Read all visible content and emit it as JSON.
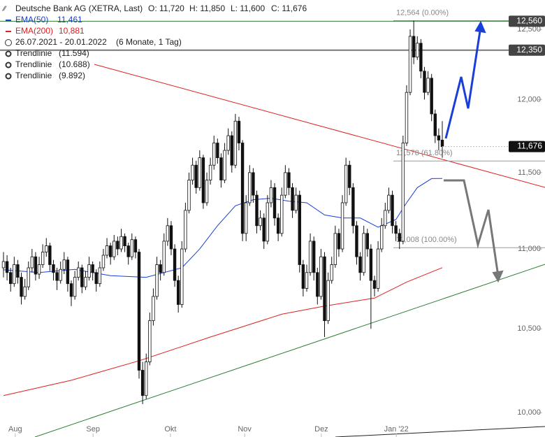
{
  "chart_data": {
    "type": "candlestick",
    "title": "Deutsche Bank AG (XETRA, Last)",
    "quote": [
      "O: 11,720",
      "H: 11,850",
      "L: 11,600",
      "C: 11,676"
    ],
    "period": "26.07.2021 - 20.01.2022",
    "period_note": "(6 Monate, 1 Tag)",
    "log_scale": true,
    "ylim": [
      9960,
      12716
    ],
    "yticks": [
      {
        "value": 10000,
        "label": "10,000"
      },
      {
        "value": 10500,
        "label": "10,500"
      },
      {
        "value": 11000,
        "label": "11,000"
      },
      {
        "value": 11500,
        "label": "11,500"
      },
      {
        "value": 12000,
        "label": "12,000"
      },
      {
        "value": 12500,
        "label": "12,500"
      }
    ],
    "xlim": [
      0,
      123
    ],
    "xticks": [
      {
        "value": 3.3,
        "label": "Aug"
      },
      {
        "value": 25.1,
        "label": "Sep"
      },
      {
        "value": 46.8,
        "label": "Okt"
      },
      {
        "value": 67.6,
        "label": "Nov"
      },
      {
        "value": 89.1,
        "label": "Dez"
      },
      {
        "value": 110.1,
        "label": "Jan '22"
      }
    ],
    "candles": [
      [
        10880,
        10980,
        10820,
        10920
      ],
      [
        10920,
        10960,
        10800,
        10850
      ],
      [
        10850,
        10880,
        10730,
        10780
      ],
      [
        10780,
        10950,
        10760,
        10900
      ],
      [
        10900,
        10930,
        10780,
        10820
      ],
      [
        10820,
        10850,
        10650,
        10700
      ],
      [
        10700,
        10810,
        10680,
        10760
      ],
      [
        10760,
        10920,
        10740,
        10880
      ],
      [
        10880,
        11000,
        10850,
        10950
      ],
      [
        10950,
        10980,
        10800,
        10840
      ],
      [
        10840,
        10950,
        10810,
        10900
      ],
      [
        10900,
        11030,
        10880,
        10980
      ],
      [
        10980,
        11070,
        10950,
        11020
      ],
      [
        11020,
        11040,
        10860,
        10900
      ],
      [
        10900,
        10930,
        10800,
        10850
      ],
      [
        10850,
        10880,
        10740,
        10800
      ],
      [
        10800,
        10920,
        10780,
        10870
      ],
      [
        10870,
        10980,
        10840,
        10930
      ],
      [
        10930,
        10950,
        10730,
        10780
      ],
      [
        10780,
        10800,
        10640,
        10700
      ],
      [
        10700,
        10860,
        10680,
        10820
      ],
      [
        10820,
        10920,
        10800,
        10880
      ],
      [
        10880,
        10900,
        10720,
        10760
      ],
      [
        10760,
        10860,
        10740,
        10820
      ],
      [
        10820,
        10950,
        10800,
        10900
      ],
      [
        10900,
        10920,
        10800,
        10850
      ],
      [
        10850,
        10870,
        10730,
        10780
      ],
      [
        10780,
        10920,
        10760,
        10880
      ],
      [
        10880,
        11000,
        10860,
        10960
      ],
      [
        10960,
        11070,
        10940,
        11020
      ],
      [
        11020,
        11040,
        10900,
        10950
      ],
      [
        10950,
        11090,
        10930,
        11050
      ],
      [
        11050,
        11080,
        10960,
        11000
      ],
      [
        11000,
        11130,
        10980,
        11080
      ],
      [
        11080,
        11100,
        10980,
        11020
      ],
      [
        11020,
        11040,
        10900,
        10950
      ],
      [
        10950,
        11100,
        10930,
        11060
      ],
      [
        11060,
        11080,
        10940,
        10980
      ],
      [
        10980,
        11000,
        10200,
        10250
      ],
      [
        10250,
        10300,
        10050,
        10100
      ],
      [
        10100,
        10350,
        10080,
        10300
      ],
      [
        10300,
        10600,
        10280,
        10550
      ],
      [
        10550,
        10750,
        10520,
        10700
      ],
      [
        10700,
        10950,
        10680,
        10900
      ],
      [
        10900,
        10930,
        10800,
        10850
      ],
      [
        10850,
        11100,
        10830,
        11050
      ],
      [
        11050,
        11200,
        11020,
        11150
      ],
      [
        11150,
        11180,
        10960,
        11000
      ],
      [
        11000,
        11030,
        10760,
        10800
      ],
      [
        10800,
        10830,
        10600,
        10650
      ],
      [
        10650,
        11050,
        10630,
        11000
      ],
      [
        11000,
        11300,
        10980,
        11250
      ],
      [
        11250,
        11500,
        11230,
        11450
      ],
      [
        11450,
        11600,
        11420,
        11550
      ],
      [
        11550,
        11580,
        11360,
        11400
      ],
      [
        11400,
        11650,
        11380,
        11600
      ],
      [
        11600,
        11620,
        11260,
        11300
      ],
      [
        11300,
        11500,
        11280,
        11450
      ],
      [
        11450,
        11600,
        11420,
        11550
      ],
      [
        11550,
        11750,
        11520,
        11700
      ],
      [
        11700,
        11730,
        11560,
        11600
      ],
      [
        11600,
        11630,
        11400,
        11450
      ],
      [
        11450,
        11700,
        11430,
        11650
      ],
      [
        11650,
        11800,
        11620,
        11750
      ],
      [
        11750,
        11780,
        11500,
        11550
      ],
      [
        11550,
        11900,
        11530,
        11850
      ],
      [
        11850,
        11880,
        11650,
        11700
      ],
      [
        11700,
        11720,
        11050,
        11100
      ],
      [
        11100,
        11350,
        11050,
        11300
      ],
      [
        11300,
        11550,
        11280,
        11500
      ],
      [
        11500,
        11530,
        11300,
        11350
      ],
      [
        11350,
        11380,
        11100,
        11150
      ],
      [
        11150,
        11250,
        11120,
        11200
      ],
      [
        11200,
        11230,
        11000,
        11050
      ],
      [
        11050,
        11350,
        11030,
        11300
      ],
      [
        11300,
        11450,
        11270,
        11400
      ],
      [
        11400,
        11430,
        11150,
        11200
      ],
      [
        11200,
        11230,
        11050,
        11100
      ],
      [
        11100,
        11400,
        11080,
        11350
      ],
      [
        11350,
        11550,
        11330,
        11500
      ],
      [
        11500,
        11530,
        11350,
        11400
      ],
      [
        11400,
        11430,
        11200,
        11250
      ],
      [
        11250,
        11400,
        11230,
        11350
      ],
      [
        11350,
        11380,
        10850,
        10900
      ],
      [
        10900,
        10930,
        10700,
        10750
      ],
      [
        10750,
        10900,
        10730,
        10850
      ],
      [
        10850,
        11100,
        10830,
        11050
      ],
      [
        11050,
        11080,
        10800,
        10850
      ],
      [
        10850,
        10880,
        10650,
        10700
      ],
      [
        10700,
        11000,
        10680,
        10950
      ],
      [
        10950,
        10980,
        10450,
        10550
      ],
      [
        10550,
        10850,
        10530,
        10800
      ],
      [
        10800,
        10950,
        10780,
        10900
      ],
      [
        10900,
        11150,
        10880,
        11100
      ],
      [
        11100,
        11130,
        10950,
        11000
      ],
      [
        11000,
        11350,
        10980,
        11300
      ],
      [
        11300,
        11600,
        11280,
        11550
      ],
      [
        11550,
        11580,
        11350,
        11400
      ],
      [
        11400,
        11430,
        11100,
        11150
      ],
      [
        11150,
        11180,
        10900,
        10950
      ],
      [
        10950,
        10980,
        10800,
        10850
      ],
      [
        10850,
        11150,
        10830,
        11100
      ],
      [
        11100,
        11130,
        10950,
        11000
      ],
      [
        11000,
        11030,
        10500,
        10800
      ],
      [
        10800,
        10830,
        10700,
        10750
      ],
      [
        10750,
        11050,
        10730,
        11000
      ],
      [
        11000,
        11200,
        10980,
        11150
      ],
      [
        11150,
        11300,
        11130,
        11250
      ],
      [
        11250,
        11400,
        11230,
        11350
      ],
      [
        11350,
        11380,
        11100,
        11150
      ],
      [
        11150,
        11180,
        11050,
        11100
      ],
      [
        11100,
        11130,
        11000,
        11050
      ],
      [
        11050,
        11750,
        11030,
        11700
      ],
      [
        11700,
        12100,
        11680,
        12050
      ],
      [
        12050,
        12500,
        12030,
        12450
      ],
      [
        12450,
        12564,
        12250,
        12300
      ],
      [
        12300,
        12450,
        12280,
        12400
      ],
      [
        12400,
        12430,
        12150,
        12200
      ],
      [
        12200,
        12230,
        12000,
        12050
      ],
      [
        12050,
        12200,
        12030,
        12150
      ],
      [
        12150,
        12180,
        11850,
        11900
      ],
      [
        11900,
        11930,
        11700,
        11750
      ],
      [
        11750,
        11800,
        11650,
        11720
      ],
      [
        11720,
        11850,
        11600,
        11676
      ]
    ],
    "series": [
      {
        "name": "EMA(50)",
        "legend_value": "11,461",
        "color": "#1a3ed8",
        "x": [
          0,
          10,
          20,
          30,
          40,
          50,
          55,
          60,
          65,
          70,
          75,
          80,
          85,
          90,
          95,
          100,
          105,
          110,
          113,
          116,
          120,
          123
        ],
        "values": [
          10867,
          10850,
          10870,
          10830,
          10820,
          10880,
          11000,
          11150,
          11280,
          11320,
          11330,
          11310,
          11300,
          11220,
          11200,
          11200,
          11140,
          11190,
          11300,
          11400,
          11460,
          11461
        ]
      },
      {
        "name": "EMA(200)",
        "legend_value": "10,881",
        "color": "#e02020",
        "x": [
          0,
          19,
          38.5,
          58,
          78,
          90,
          104,
          113,
          123
        ],
        "values": [
          10100,
          10190,
          10310,
          10450,
          10590,
          10640,
          10690,
          10790,
          10881
        ]
      }
    ],
    "trendlines": [
      "Trendlinie",
      "(11.594)",
      "Trendlinie",
      "(10.688)",
      "Trendlinie",
      "(9.892)"
    ],
    "fib_levels": [
      {
        "value": 12564,
        "label": "12,564 (0.00%)"
      },
      {
        "value": 11578,
        "label": "11,578 (61.80%)"
      },
      {
        "value": 11008,
        "label": "11,008 (100.00%)"
      }
    ],
    "hlines": [
      {
        "value": 12560,
        "label": "12,560",
        "color": "#2e7d32"
      },
      {
        "value": 12350,
        "label": "12,350",
        "color": "#777777"
      }
    ],
    "last_price": {
      "value": 11676,
      "label": "11,676"
    }
  }
}
